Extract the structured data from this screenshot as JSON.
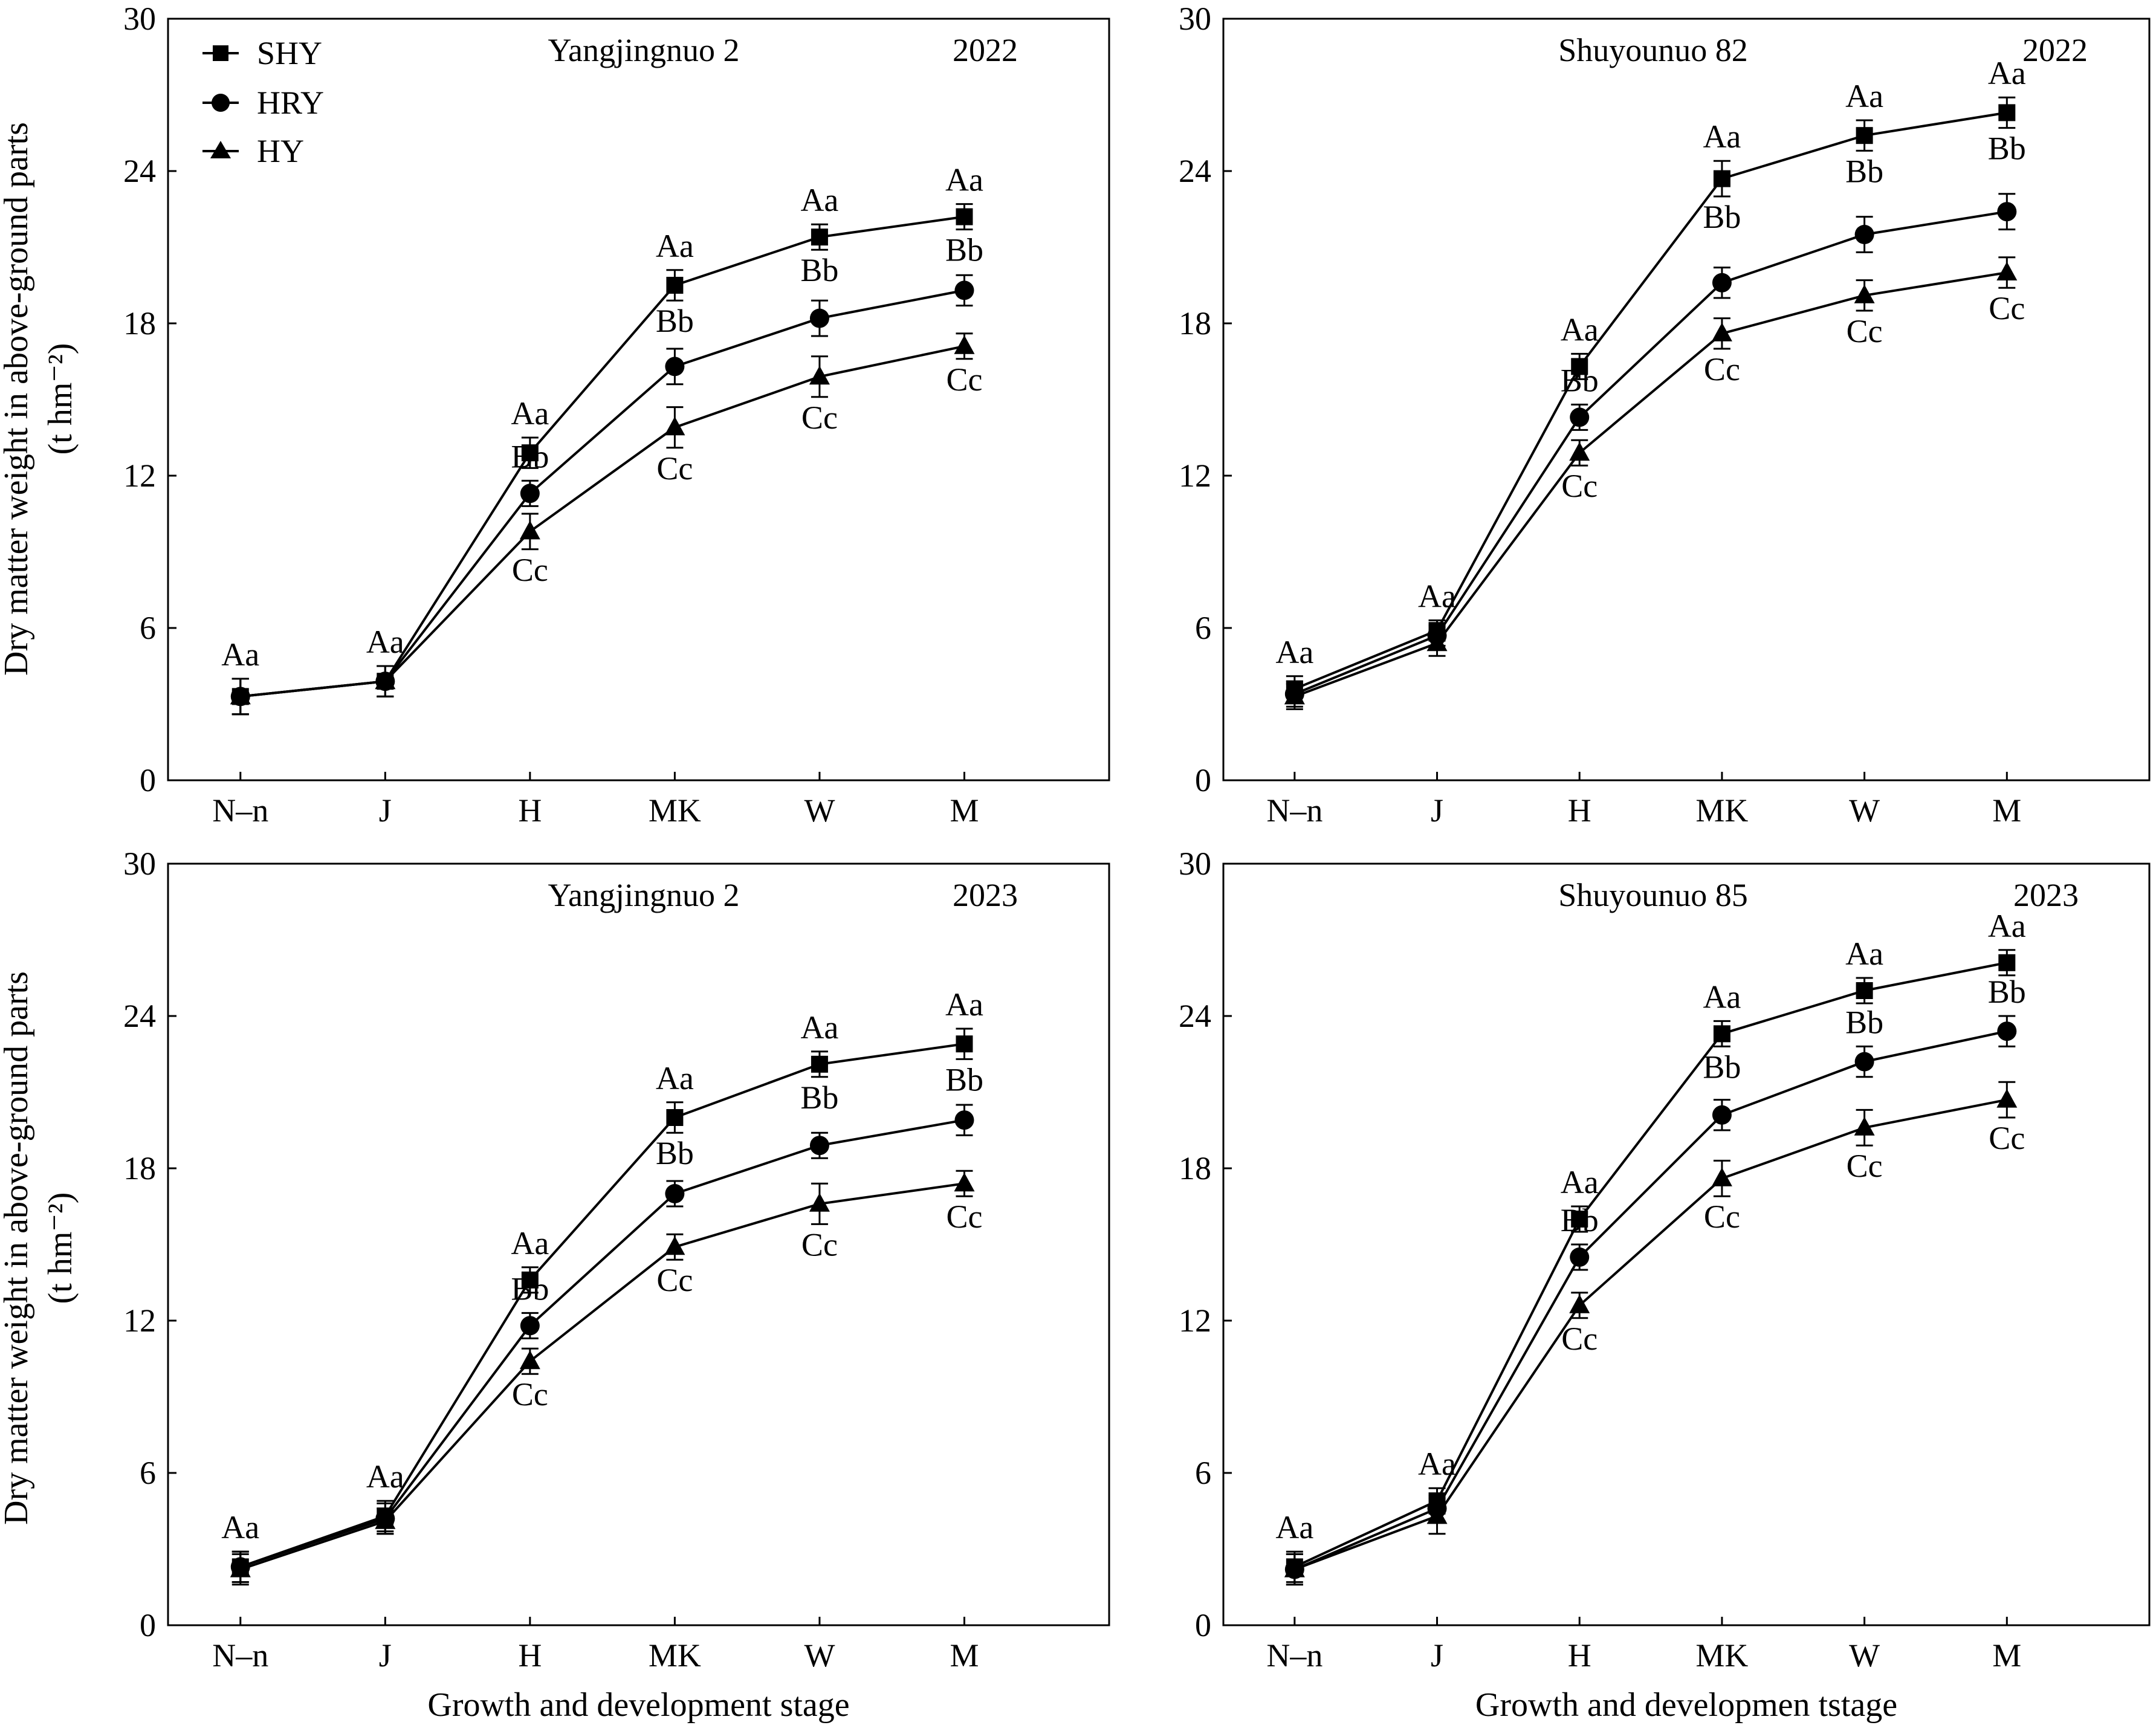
{
  "y_axis_label": "Dry matter weight in above-ground parts",
  "y_axis_unit": "(t hm⁻²)",
  "legend": [
    {
      "name": "SHY",
      "marker": "square"
    },
    {
      "name": "HRY",
      "marker": "circle"
    },
    {
      "name": "HY",
      "marker": "triangle"
    }
  ],
  "colors": {
    "line": "#000000",
    "background": "#ffffff"
  },
  "chart_data": [
    {
      "type": "line",
      "title": "Yangjingnuo 2",
      "year": "2022",
      "xlabel": "",
      "ylabel": "Dry matter weight in above-ground parts (t hm⁻²)",
      "categories": [
        "N–n",
        "J",
        "H",
        "MK",
        "W",
        "M"
      ],
      "ylim": [
        0,
        30
      ],
      "yticks": [
        "0",
        "6",
        "12",
        "18",
        "24",
        "30"
      ],
      "legend_position": "top-left",
      "series": [
        {
          "name": "SHY",
          "marker": "square",
          "values": [
            3.3,
            3.9,
            12.9,
            19.5,
            21.4,
            22.2
          ],
          "errors": [
            0.7,
            0.6,
            0.6,
            0.6,
            0.5,
            0.5
          ],
          "labels": [
            "Aa",
            "Aa",
            "Aa",
            "Aa",
            "Aa",
            "Aa"
          ]
        },
        {
          "name": "HRY",
          "marker": "circle",
          "values": [
            3.3,
            3.9,
            11.3,
            16.3,
            18.2,
            19.3
          ],
          "errors": [
            0.7,
            0.6,
            0.5,
            0.7,
            0.7,
            0.6
          ],
          "labels": [
            "",
            "",
            "Bb",
            "Bb",
            "Bb",
            "Bb"
          ]
        },
        {
          "name": "HY",
          "marker": "triangle",
          "values": [
            3.3,
            3.9,
            9.8,
            13.9,
            15.9,
            17.1
          ],
          "errors": [
            0.7,
            0.6,
            0.7,
            0.8,
            0.8,
            0.5
          ],
          "labels": [
            "",
            "",
            "Cc",
            "Cc",
            "Cc",
            "Cc"
          ]
        }
      ]
    },
    {
      "type": "line",
      "title": "Shuyounuo 82",
      "year": "2022",
      "xlabel": "",
      "ylabel": "",
      "categories": [
        "N–n",
        "J",
        "H",
        "MK",
        "W",
        "M"
      ],
      "ylim": [
        0,
        30
      ],
      "yticks": [
        "0",
        "6",
        "12",
        "18",
        "24",
        "30"
      ],
      "series": [
        {
          "name": "SHY",
          "marker": "square",
          "values": [
            3.6,
            5.9,
            16.3,
            23.7,
            25.4,
            26.3
          ],
          "errors": [
            0.5,
            0.4,
            0.5,
            0.7,
            0.6,
            0.6
          ],
          "labels": [
            "Aa",
            "Aa",
            "Aa",
            "Aa",
            "Aa",
            "Aa"
          ]
        },
        {
          "name": "HRY",
          "marker": "circle",
          "values": [
            3.4,
            5.7,
            14.3,
            19.6,
            21.5,
            22.4
          ],
          "errors": [
            0.5,
            0.4,
            0.5,
            0.6,
            0.7,
            0.7
          ],
          "labels": [
            "",
            "",
            "Bb",
            "Bb",
            "Bb",
            "Bb"
          ]
        },
        {
          "name": "HY",
          "marker": "triangle",
          "values": [
            3.3,
            5.4,
            12.9,
            17.6,
            19.1,
            20.0
          ],
          "errors": [
            0.5,
            0.5,
            0.5,
            0.6,
            0.6,
            0.6
          ],
          "labels": [
            "",
            "",
            "Cc",
            "Cc",
            "Cc",
            "Cc"
          ]
        }
      ]
    },
    {
      "type": "line",
      "title": "Yangjingnuo 2",
      "year": "2023",
      "xlabel": "Growth and development stage",
      "ylabel": "Dry matter weight in above-ground parts (t hm⁻²)",
      "categories": [
        "N–n",
        "J",
        "H",
        "MK",
        "W",
        "M"
      ],
      "ylim": [
        0,
        30
      ],
      "yticks": [
        "0",
        "6",
        "12",
        "18",
        "24",
        "30"
      ],
      "series": [
        {
          "name": "SHY",
          "marker": "square",
          "values": [
            2.3,
            4.3,
            13.6,
            20.0,
            22.1,
            22.9
          ],
          "errors": [
            0.6,
            0.6,
            0.5,
            0.6,
            0.5,
            0.6
          ],
          "labels": [
            "Aa",
            "Aa",
            "Aa",
            "Aa",
            "Aa",
            "Aa"
          ]
        },
        {
          "name": "HRY",
          "marker": "circle",
          "values": [
            2.3,
            4.2,
            11.8,
            17.0,
            18.9,
            19.9
          ],
          "errors": [
            0.6,
            0.6,
            0.5,
            0.5,
            0.5,
            0.6
          ],
          "labels": [
            "",
            "",
            "Bb",
            "Bb",
            "Bb",
            "Bb"
          ]
        },
        {
          "name": "HY",
          "marker": "triangle",
          "values": [
            2.2,
            4.1,
            10.4,
            14.9,
            16.6,
            17.4
          ],
          "errors": [
            0.6,
            0.5,
            0.5,
            0.5,
            0.8,
            0.5
          ],
          "labels": [
            "",
            "",
            "Cc",
            "Cc",
            "Cc",
            "Cc"
          ]
        }
      ]
    },
    {
      "type": "line",
      "title": "Shuyounuo 85",
      "year": "2023",
      "xlabel": "Growth and developmen tstage",
      "ylabel": "",
      "categories": [
        "N–n",
        "J",
        "H",
        "MK",
        "W",
        "M"
      ],
      "ylim": [
        0,
        30
      ],
      "yticks": [
        "0",
        "6",
        "12",
        "18",
        "24",
        "30"
      ],
      "series": [
        {
          "name": "SHY",
          "marker": "square",
          "values": [
            2.3,
            4.9,
            16.0,
            23.3,
            25.0,
            26.1
          ],
          "errors": [
            0.6,
            0.5,
            0.5,
            0.5,
            0.5,
            0.5
          ],
          "labels": [
            "Aa",
            "Aa",
            "Aa",
            "Aa",
            "Aa",
            "Aa"
          ]
        },
        {
          "name": "HRY",
          "marker": "circle",
          "values": [
            2.2,
            4.6,
            14.5,
            20.1,
            22.2,
            23.4
          ],
          "errors": [
            0.6,
            0.5,
            0.5,
            0.6,
            0.6,
            0.6
          ],
          "labels": [
            "",
            "",
            "Bb",
            "Bb",
            "Bb",
            "Bb"
          ]
        },
        {
          "name": "HY",
          "marker": "triangle",
          "values": [
            2.2,
            4.3,
            12.6,
            17.6,
            19.6,
            20.7
          ],
          "errors": [
            0.6,
            0.7,
            0.5,
            0.7,
            0.7,
            0.7
          ],
          "labels": [
            "",
            "",
            "Cc",
            "Cc",
            "Cc",
            "Cc"
          ]
        }
      ]
    }
  ]
}
